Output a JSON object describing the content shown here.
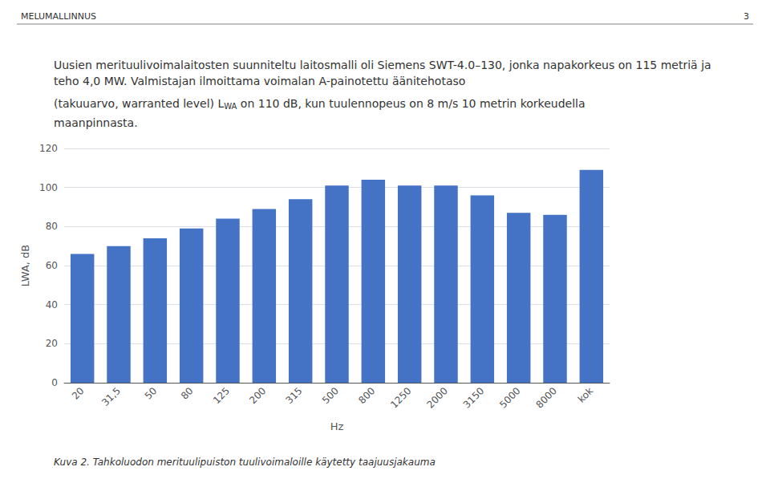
{
  "chart_data": {
    "type": "bar",
    "annotations": [
      "MELUMALLINNUS",
      "3",
      "Uusien merituulivoimalaitosten suunniteltu laitosmalli oli Siemens SWT-4.0–130, jonka napakorkeus on 115 metriä ja teho 4,0 MW. Valmistajan ilmoittama voimalan A-painotettu ääniteho­taso",
      "(takuuarvo, warranted level) L",
      "WA",
      " on 110 dB, kun tuulennopeus on 8 m/s 10 metrin korkeudella",
      "maanpinnasta.",
      "Kuva 2. Tahkoluodon merituulipuiston tuulivoimaloille käytetty taajuusjakauma"
    ],
    "xlabel": "Hz",
    "ylabel": "LWA, dB",
    "categories": [
      "20",
      "31,5",
      "50",
      "80",
      "125",
      "200",
      "315",
      "500",
      "800",
      "1250",
      "2000",
      "3150",
      "5000",
      "8000",
      "kok"
    ],
    "values": [
      66,
      70,
      74,
      79,
      84,
      89,
      94,
      101,
      104,
      101,
      101,
      96,
      87,
      86,
      109
    ],
    "color": "#4472C4",
    "ylim": [
      0,
      120
    ],
    "yticks": [
      0,
      20,
      40,
      60,
      80,
      100,
      120
    ],
    "grid": true
  }
}
